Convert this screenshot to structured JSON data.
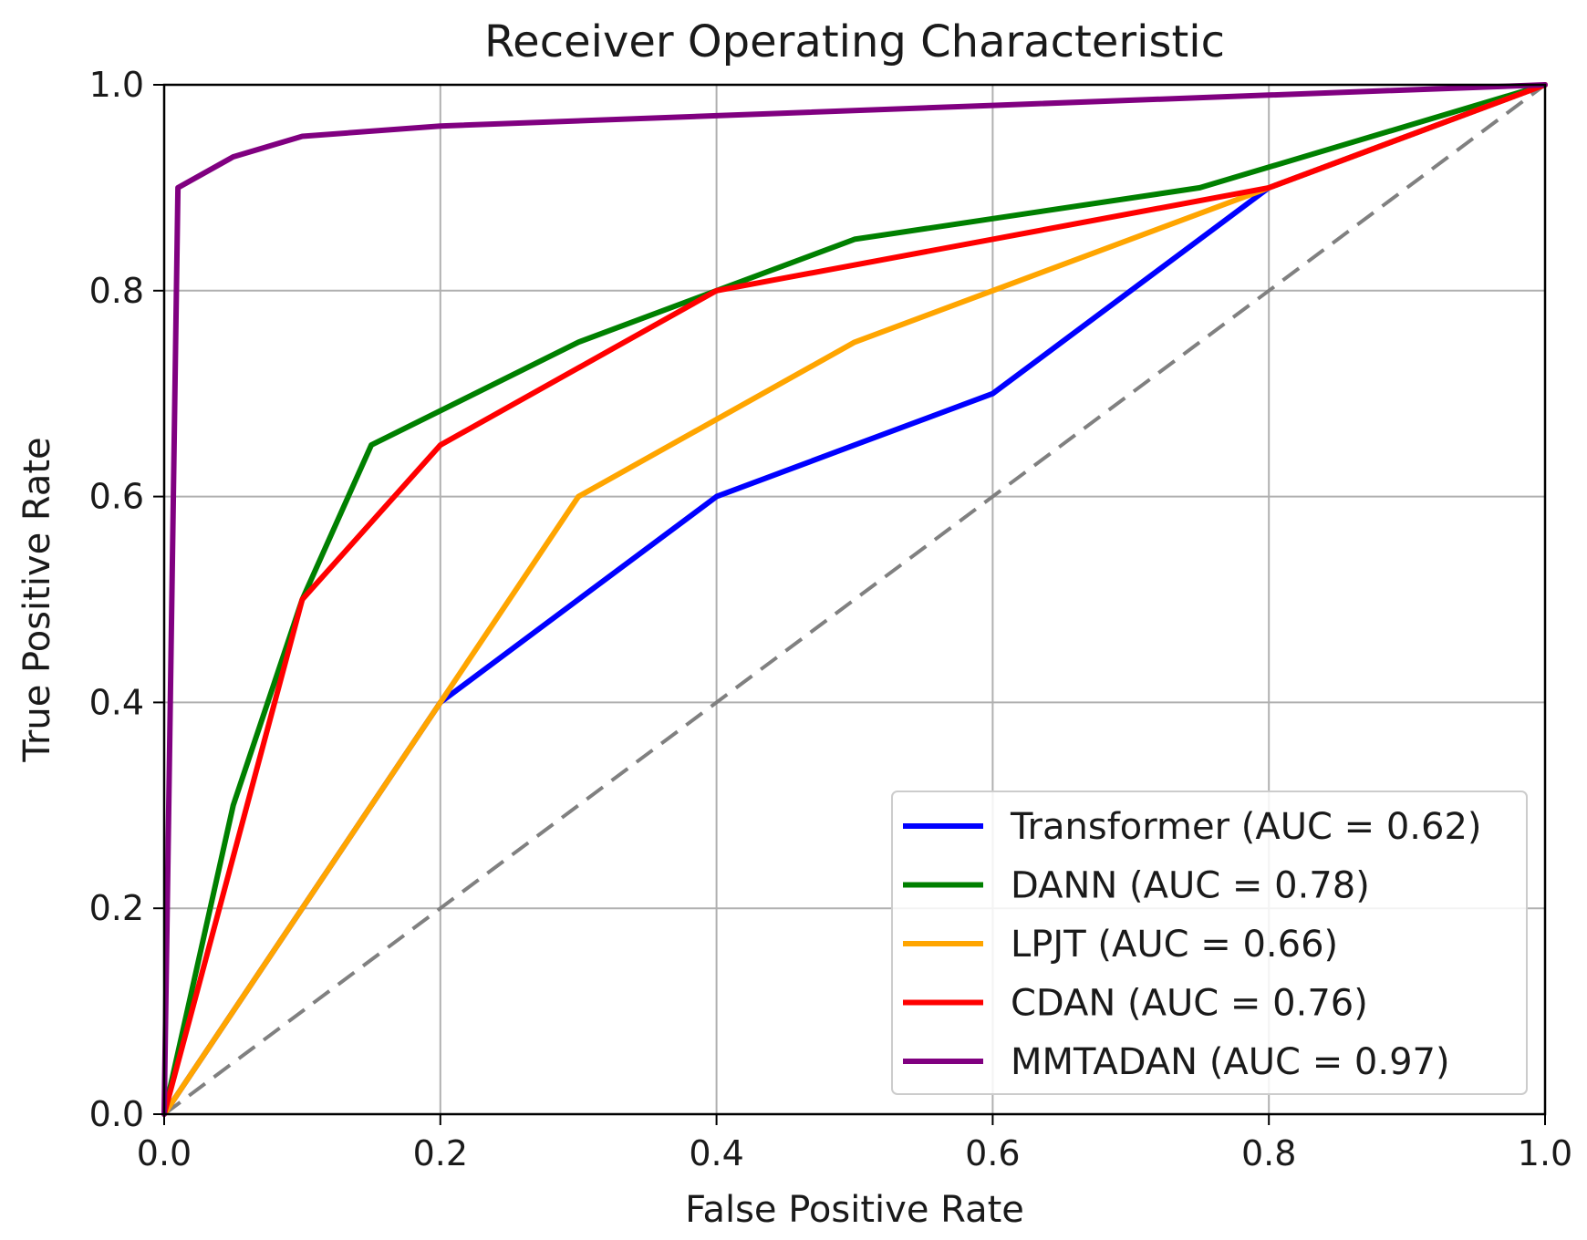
{
  "chart_data": {
    "type": "line",
    "title": "Receiver Operating Characteristic",
    "xlabel": "False Positive Rate",
    "ylabel": "True Positive Rate",
    "xlim": [
      0.0,
      1.0
    ],
    "ylim": [
      0.0,
      1.0
    ],
    "xticks": [
      "0.0",
      "0.2",
      "0.4",
      "0.6",
      "0.8",
      "1.0"
    ],
    "yticks": [
      "0.0",
      "0.2",
      "0.4",
      "0.6",
      "0.8",
      "1.0"
    ],
    "grid": true,
    "legend_position": "lower-right",
    "reference_line": {
      "name": "chance",
      "x": [
        0,
        1
      ],
      "y": [
        0,
        1
      ],
      "color": "#808080",
      "style": "dashed"
    },
    "series": [
      {
        "name": "Transformer",
        "label": "Transformer (AUC = 0.62)",
        "color": "#0000ff",
        "x": [
          0.0,
          0.1,
          0.2,
          0.3,
          0.4,
          0.5,
          0.6,
          0.8,
          1.0
        ],
        "y": [
          0.0,
          0.2,
          0.4,
          0.5,
          0.6,
          0.65,
          0.7,
          0.9,
          1.0
        ]
      },
      {
        "name": "DANN",
        "label": "DANN (AUC = 0.78)",
        "color": "#008000",
        "x": [
          0.0,
          0.05,
          0.1,
          0.15,
          0.3,
          0.4,
          0.5,
          0.75,
          1.0
        ],
        "y": [
          0.0,
          0.3,
          0.5,
          0.65,
          0.75,
          0.8,
          0.85,
          0.9,
          1.0
        ]
      },
      {
        "name": "LPJT",
        "label": "LPJT (AUC = 0.66)",
        "color": "#ffa500",
        "x": [
          0.0,
          0.1,
          0.2,
          0.3,
          0.5,
          0.6,
          0.8,
          1.0
        ],
        "y": [
          0.0,
          0.2,
          0.4,
          0.6,
          0.75,
          0.8,
          0.9,
          1.0
        ]
      },
      {
        "name": "CDAN",
        "label": "CDAN (AUC = 0.76)",
        "color": "#ff0000",
        "x": [
          0.0,
          0.1,
          0.2,
          0.4,
          0.6,
          0.8,
          1.0
        ],
        "y": [
          0.0,
          0.5,
          0.65,
          0.8,
          0.85,
          0.9,
          1.0
        ]
      },
      {
        "name": "MMTADAN",
        "label": "MMTADAN (AUC = 0.97)",
        "color": "#800080",
        "x": [
          0.0,
          0.01,
          0.05,
          0.1,
          0.2,
          0.4,
          0.6,
          0.8,
          1.0
        ],
        "y": [
          0.0,
          0.9,
          0.93,
          0.95,
          0.96,
          0.97,
          0.98,
          0.99,
          1.0
        ]
      }
    ]
  }
}
